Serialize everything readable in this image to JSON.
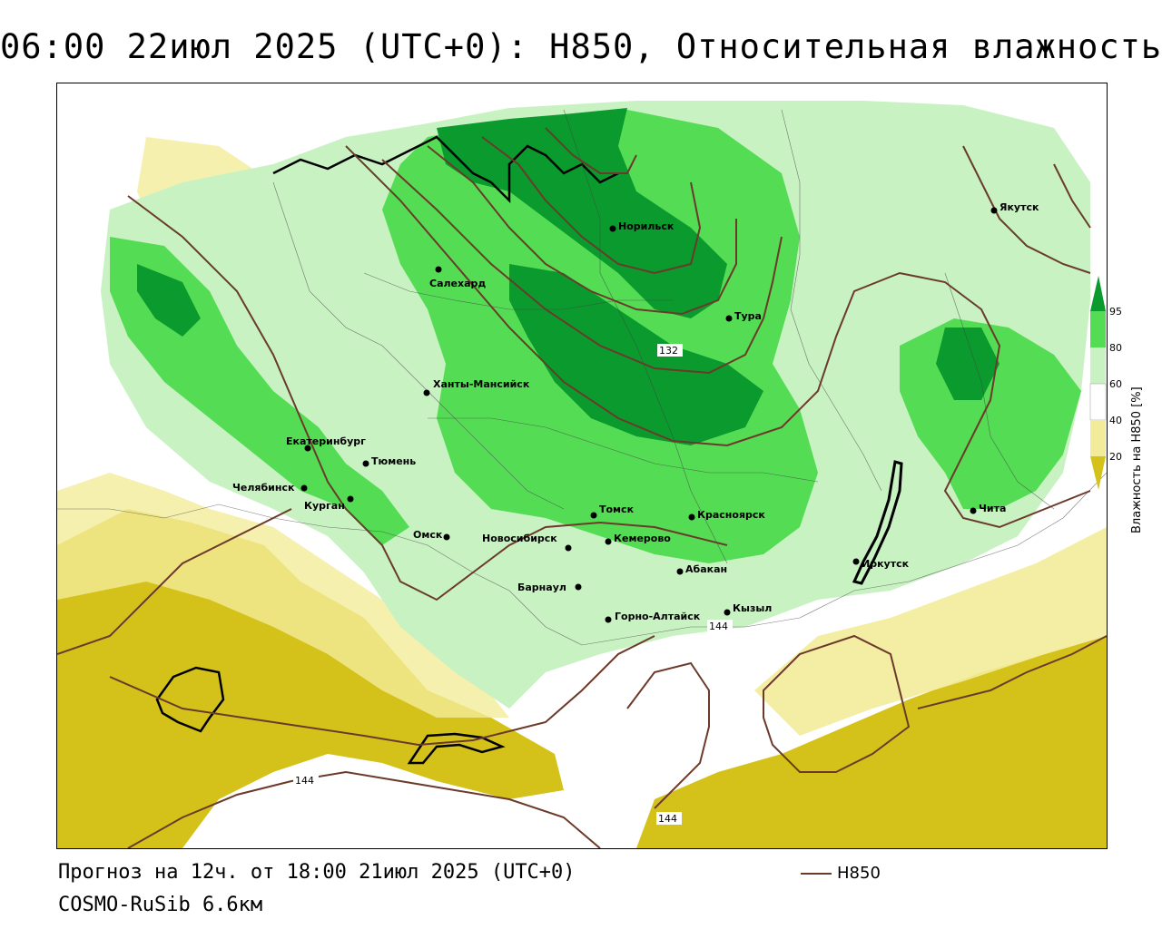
{
  "header": {
    "title": "06:00 22июл 2025 (UTC+0): H850, Относительная влажность"
  },
  "footer": {
    "forecast": "Прогноз на 12ч. от 18:00 21июл 2025 (UTC+0)",
    "model": "COSMO-RuSib 6.6км"
  },
  "line_legend": {
    "label": "H850",
    "color": "#6b3a2a"
  },
  "colorbar": {
    "title": "Влажность на H850 [%]",
    "ticks": [
      "20",
      "40",
      "60",
      "80",
      "95"
    ],
    "colors": {
      "lt20": "#d4c21a",
      "20_40": "#f2ec9a",
      "40_60": "#ffffff",
      "60_80": "#c8f2c2",
      "80_95": "#54dc54",
      "gt95": "#0a9a2e"
    }
  },
  "contour_labels": [
    "132",
    "144",
    "144",
    "144"
  ],
  "cities": [
    {
      "name": "Якутск"
    },
    {
      "name": "Норильск"
    },
    {
      "name": "Салехард"
    },
    {
      "name": "Тура"
    },
    {
      "name": "Ханты-Мансийск"
    },
    {
      "name": "Екатеринбург"
    },
    {
      "name": "Тюмень"
    },
    {
      "name": "Челябинск"
    },
    {
      "name": "Курган"
    },
    {
      "name": "Омск"
    },
    {
      "name": "Новосибирск"
    },
    {
      "name": "Томск"
    },
    {
      "name": "Кемерово"
    },
    {
      "name": "Красноярск"
    },
    {
      "name": "Барнаул"
    },
    {
      "name": "Абакан"
    },
    {
      "name": "Горно-Алтайск"
    },
    {
      "name": "Кызыл"
    },
    {
      "name": "Иркутск"
    },
    {
      "name": "Чита"
    }
  ]
}
